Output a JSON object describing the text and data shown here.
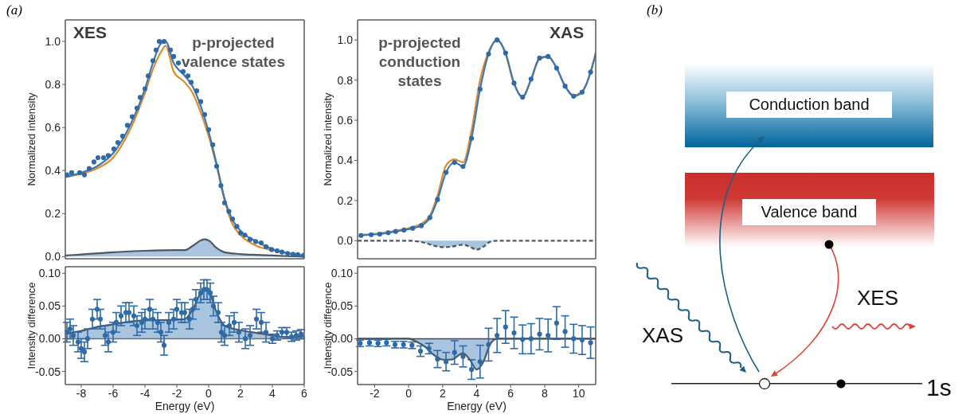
{
  "chart_data": [
    {
      "type": "line",
      "ylabel": "Normalized intensity",
      "annotations": [
        "(a)",
        "XES",
        "p-projected valence states"
      ],
      "xlim": [
        -9,
        6
      ],
      "xticks": [
        -8,
        -6,
        -4,
        -2,
        0,
        2,
        4,
        6
      ],
      "ylim": [
        -0.01,
        1.1
      ],
      "yticks": [
        {
          "value": 0,
          "label": "0.0"
        },
        {
          "value": 0.2,
          "label": "0.2"
        },
        {
          "value": 0.4,
          "label": "0.4"
        },
        {
          "value": 0.6,
          "label": "0.6"
        },
        {
          "value": 0.8,
          "label": "0.8"
        },
        {
          "value": 1,
          "label": "1.0"
        }
      ],
      "tick_labels": "y",
      "series": [
        {
          "type": "area",
          "color": "#a9c4de",
          "x": [
            -9,
            -8,
            -6,
            -4,
            -2,
            -1.5,
            -1,
            -0.5,
            -0.3,
            0,
            0.5,
            1,
            2,
            3,
            4,
            5,
            6
          ],
          "values": [
            0.005,
            0.01,
            0.02,
            0.027,
            0.03,
            0.03,
            0.05,
            0.075,
            0.08,
            0.075,
            0.04,
            0.02,
            0.012,
            0.008,
            0.005,
            0.002,
            0.0
          ]
        },
        {
          "type": "line",
          "color": "#e08a2c",
          "x": [
            -9,
            -8,
            -7,
            -6,
            -5,
            -4,
            -3.5,
            -3,
            -2.7,
            -2.2,
            -1.5,
            -1,
            -0.5,
            0,
            0.5,
            1,
            1.5,
            2,
            3,
            4,
            5,
            6
          ],
          "values": [
            0.37,
            0.385,
            0.41,
            0.46,
            0.58,
            0.76,
            0.87,
            0.95,
            0.98,
            0.86,
            0.81,
            0.76,
            0.67,
            0.56,
            0.42,
            0.26,
            0.15,
            0.1,
            0.05,
            0.03,
            0.015,
            0.005
          ]
        },
        {
          "type": "line",
          "color": "#3a78b5",
          "x": [
            -9,
            -8,
            -7,
            -6,
            -5,
            -4,
            -3.5,
            -3,
            -2.7,
            -2.2,
            -1.5,
            -1,
            -0.5,
            0,
            0.5,
            1,
            1.5,
            2,
            3,
            4,
            5,
            6
          ],
          "values": [
            0.37,
            0.39,
            0.42,
            0.48,
            0.6,
            0.78,
            0.9,
            0.99,
            1.0,
            0.9,
            0.84,
            0.79,
            0.7,
            0.58,
            0.43,
            0.27,
            0.17,
            0.12,
            0.07,
            0.035,
            0.015,
            0.005
          ]
        },
        {
          "type": "scatter",
          "marker": "circle",
          "color": "#2e6aa8",
          "x": [
            -8.9,
            -8.6,
            -8.1,
            -7.8,
            -7.5,
            -7.2,
            -6.95,
            -6.6,
            -6.3,
            -5.95,
            -5.7,
            -5.4,
            -5.1,
            -4.8,
            -4.5,
            -4.3,
            -4.0,
            -3.8,
            -3.5,
            -3.3,
            -3.1,
            -2.8,
            -2.4,
            -2.2,
            -1.9,
            -1.6,
            -1.3,
            -1.1,
            -0.75,
            -0.5,
            -0.25,
            0.0,
            0.26,
            0.5,
            0.77,
            1.0,
            1.27,
            1.5,
            1.77,
            2.0,
            2.27,
            2.6,
            2.95,
            3.3,
            3.6,
            3.95,
            4.3,
            4.6,
            4.96,
            5.3,
            5.6,
            5.97
          ],
          "values": [
            0.38,
            0.39,
            0.39,
            0.38,
            0.41,
            0.44,
            0.46,
            0.46,
            0.47,
            0.5,
            0.53,
            0.56,
            0.61,
            0.65,
            0.69,
            0.74,
            0.78,
            0.84,
            0.91,
            0.96,
            1.0,
            1.0,
            0.96,
            0.93,
            0.9,
            0.86,
            0.84,
            0.81,
            0.77,
            0.72,
            0.66,
            0.59,
            0.52,
            0.42,
            0.33,
            0.25,
            0.21,
            0.175,
            0.14,
            0.11,
            0.1,
            0.08,
            0.07,
            0.064,
            0.046,
            0.033,
            0.027,
            0.021,
            0.015,
            0.011,
            0.009,
            0.006
          ]
        }
      ]
    },
    {
      "type": "scatter",
      "xlabel": "Energy (eV)",
      "ylabel": "Intensity difference",
      "xlim": [
        -9,
        6
      ],
      "xticks": [
        -8,
        -6,
        -4,
        -2,
        0,
        2,
        4,
        6
      ],
      "ylim": [
        -0.07,
        0.11
      ],
      "yticks": [
        {
          "value": -0.05,
          "label": "-0.05"
        },
        {
          "value": 0,
          "label": "0.00"
        },
        {
          "value": 0.05,
          "label": "0.05"
        },
        {
          "value": 0.1,
          "label": "0.10"
        }
      ],
      "ref_lines": [
        {
          "axis": "y",
          "value": 0,
          "color": "#6e6e6e"
        }
      ],
      "series": [
        {
          "type": "area",
          "color": "#a9c4de",
          "x": [
            -9,
            -8,
            -7,
            -6,
            -5,
            -4,
            -2,
            -1.5,
            -1,
            -0.5,
            -0.2,
            0,
            0.5,
            1,
            2,
            3,
            4,
            5,
            6
          ],
          "values": [
            0.008,
            0.012,
            0.018,
            0.022,
            0.026,
            0.028,
            0.029,
            0.03,
            0.045,
            0.07,
            0.078,
            0.075,
            0.04,
            0.02,
            0.013,
            0.009,
            0.005,
            0.002,
            0.004
          ]
        },
        {
          "type": "scatter",
          "marker": "circle",
          "color": "#2e6aa8",
          "x": [
            -8.9,
            -8.7,
            -8.5,
            -8.2,
            -8.0,
            -7.8,
            -7.6,
            -7.3,
            -7.0,
            -6.8,
            -6.5,
            -6.3,
            -6.0,
            -5.8,
            -5.5,
            -5.2,
            -5.0,
            -4.7,
            -4.5,
            -4.2,
            -4.0,
            -3.7,
            -3.5,
            -3.2,
            -3.0,
            -2.8,
            -2.5,
            -2.2,
            -2.0,
            -1.7,
            -1.5,
            -1.2,
            -1.0,
            -0.8,
            -0.5,
            -0.3,
            -0.1,
            0.1,
            0.3,
            0.6,
            0.8,
            1.0,
            1.3,
            1.6,
            1.9,
            2.3,
            2.6,
            3.0,
            3.3,
            3.6,
            4.0,
            4.3,
            4.6,
            4.9,
            5.2,
            5.5,
            5.8
          ],
          "values": [
            0.01,
            0.015,
            0.005,
            -0.005,
            -0.015,
            -0.02,
            0.0,
            0.03,
            0.045,
            0.03,
            0.005,
            -0.005,
            0.01,
            0.025,
            0.035,
            0.04,
            0.04,
            0.035,
            0.02,
            0.025,
            0.03,
            0.045,
            0.03,
            0.025,
            0.01,
            -0.01,
            0.025,
            0.03,
            0.045,
            0.04,
            0.04,
            0.03,
            0.045,
            0.06,
            0.07,
            0.075,
            0.075,
            0.07,
            0.05,
            0.04,
            0.01,
            0.005,
            0.02,
            0.025,
            0.01,
            0.0,
            0.005,
            0.03,
            0.025,
            0.01,
            0.0,
            0.005,
            0.01,
            0.01,
            0.003,
            0.005,
            0.007
          ],
          "errors": [
            0.015,
            0.015,
            0.015,
            0.015,
            0.015,
            0.015,
            0.015,
            0.015,
            0.015,
            0.015,
            0.015,
            0.015,
            0.015,
            0.015,
            0.015,
            0.015,
            0.015,
            0.015,
            0.015,
            0.015,
            0.015,
            0.015,
            0.015,
            0.015,
            0.015,
            0.015,
            0.015,
            0.015,
            0.015,
            0.015,
            0.015,
            0.015,
            0.015,
            0.015,
            0.015,
            0.015,
            0.015,
            0.015,
            0.015,
            0.015,
            0.015,
            0.015,
            0.015,
            0.015,
            0.015,
            0.015,
            0.015,
            0.015,
            0.015,
            0.015,
            0.007,
            0.007,
            0.007,
            0.007,
            0.007,
            0.007,
            0.007
          ]
        }
      ]
    },
    {
      "type": "line",
      "ylabel": "Normalized intensity",
      "annotations": [
        "p-projected conduction states",
        "XAS"
      ],
      "xlim": [
        -3,
        11
      ],
      "xticks": [
        -2,
        0,
        2,
        4,
        6,
        8,
        10
      ],
      "ylim": [
        -0.09,
        1.1
      ],
      "yticks": [
        {
          "value": 0,
          "label": "0.0"
        },
        {
          "value": 0.2,
          "label": "0.2"
        },
        {
          "value": 0.4,
          "label": "0.4"
        },
        {
          "value": 0.6,
          "label": "0.6"
        },
        {
          "value": 0.8,
          "label": "0.8"
        },
        {
          "value": 1,
          "label": "1.0"
        }
      ],
      "tick_labels": "y",
      "series": [
        {
          "type": "area",
          "color": "#a9c4de",
          "line_style": "dashed",
          "x": [
            -3,
            0,
            0.5,
            1,
            1.5,
            2,
            2.5,
            3.2,
            3.6,
            4,
            4.4,
            4.8,
            5.2,
            11
          ],
          "values": [
            0,
            0,
            -0.003,
            -0.012,
            -0.025,
            -0.032,
            -0.03,
            -0.02,
            -0.03,
            -0.045,
            -0.03,
            -0.005,
            0,
            0
          ]
        },
        {
          "type": "line",
          "color": "#e08a2c",
          "x": [
            -2.8,
            -2.2,
            -1.7,
            -1.2,
            -0.76,
            -0.27,
            0.24,
            0.75,
            1.25,
            1.7,
            2.2,
            2.7,
            3.2,
            3.7,
            4.2,
            4.7,
            5.2,
            5.7,
            6.2,
            6.7,
            7.2,
            7.7,
            8.2,
            8.7,
            9.2,
            9.7,
            10.2,
            10.7,
            11
          ],
          "values": [
            0.03,
            0.033,
            0.037,
            0.043,
            0.05,
            0.057,
            0.068,
            0.085,
            0.125,
            0.225,
            0.375,
            0.405,
            0.39,
            0.55,
            0.8,
            0.94,
            1.0,
            0.93,
            0.78,
            0.72,
            0.8,
            0.905,
            0.915,
            0.86,
            0.77,
            0.725,
            0.745,
            0.84,
            0.94
          ]
        },
        {
          "type": "line",
          "color": "#3a78b5",
          "x": [
            -2.8,
            -2.2,
            -1.7,
            -1.2,
            -0.76,
            -0.27,
            0.24,
            0.75,
            1.25,
            1.7,
            2.2,
            2.7,
            3.2,
            3.7,
            4.2,
            4.7,
            5.2,
            5.7,
            6.2,
            6.7,
            7.2,
            7.7,
            8.2,
            8.7,
            9.2,
            9.7,
            10.2,
            10.7,
            11
          ],
          "values": [
            0.026,
            0.03,
            0.033,
            0.04,
            0.046,
            0.053,
            0.062,
            0.075,
            0.115,
            0.205,
            0.34,
            0.39,
            0.37,
            0.51,
            0.755,
            0.93,
            1.0,
            0.935,
            0.785,
            0.715,
            0.805,
            0.91,
            0.918,
            0.86,
            0.77,
            0.72,
            0.74,
            0.84,
            0.93
          ]
        },
        {
          "type": "scatter",
          "marker": "circle",
          "color": "#2e6aa8",
          "x": [
            -2.8,
            -2.2,
            -1.7,
            -1.2,
            -0.76,
            -0.27,
            0.24,
            0.75,
            1.25,
            1.7,
            2.2,
            2.7,
            3.2,
            3.7,
            4.2,
            4.7,
            5.2,
            5.7,
            6.2,
            6.7,
            7.2,
            7.7,
            8.2,
            8.7,
            9.2,
            9.7,
            10.2,
            10.7
          ],
          "values": [
            0.026,
            0.03,
            0.033,
            0.04,
            0.046,
            0.053,
            0.062,
            0.075,
            0.115,
            0.205,
            0.34,
            0.39,
            0.37,
            0.51,
            0.755,
            0.93,
            1.0,
            0.935,
            0.785,
            0.715,
            0.805,
            0.91,
            0.918,
            0.86,
            0.77,
            0.72,
            0.74,
            0.84
          ]
        }
      ]
    },
    {
      "type": "scatter",
      "xlabel": "Energy (eV)",
      "ylabel": "Intensity difference",
      "xlim": [
        -3,
        11
      ],
      "xticks": [
        -2,
        0,
        2,
        4,
        6,
        8,
        10
      ],
      "ylim": [
        -0.07,
        0.11
      ],
      "yticks": [
        {
          "value": -0.05,
          "label": "-0.05"
        },
        {
          "value": 0,
          "label": "0.00"
        },
        {
          "value": 0.05,
          "label": "0.05"
        },
        {
          "value": 0.1,
          "label": "0.10"
        }
      ],
      "ref_lines": [
        {
          "axis": "y",
          "value": 0,
          "color": "#4a4a4a"
        }
      ],
      "series": [
        {
          "type": "area",
          "color": "#a9c4de",
          "x": [
            -3,
            0,
            0.5,
            1,
            1.5,
            2,
            2.5,
            3.2,
            3.6,
            4,
            4.4,
            4.8,
            5.2,
            11
          ],
          "values": [
            0,
            0,
            -0.005,
            -0.013,
            -0.025,
            -0.032,
            -0.032,
            -0.022,
            -0.032,
            -0.047,
            -0.035,
            -0.008,
            0,
            0
          ]
        },
        {
          "type": "scatter",
          "marker": "circle",
          "color": "#2e6aa8",
          "x": [
            -2.85,
            -2.3,
            -1.8,
            -1.3,
            -0.8,
            -0.3,
            0.2,
            0.7,
            1.2,
            1.7,
            2.2,
            2.7,
            3.2,
            3.7,
            4.2,
            4.7,
            5.2,
            5.7,
            6.2,
            6.7,
            7.2,
            7.7,
            8.2,
            8.7,
            9.2,
            9.7,
            10.2,
            10.7
          ],
          "values": [
            -0.007,
            -0.006,
            -0.007,
            -0.006,
            -0.009,
            -0.009,
            -0.01,
            -0.019,
            -0.015,
            -0.031,
            -0.035,
            -0.021,
            -0.027,
            -0.047,
            -0.035,
            -0.009,
            0.005,
            0.018,
            0.009,
            -0.001,
            0.0,
            0.007,
            0.005,
            0.024,
            0.011,
            0.0,
            -0.002,
            -0.006
          ],
          "errors": [
            0.005,
            0.005,
            0.005,
            0.005,
            0.005,
            0.005,
            0.005,
            0.008,
            0.008,
            0.013,
            0.014,
            0.018,
            0.016,
            0.015,
            0.025,
            0.025,
            0.026,
            0.025,
            0.024,
            0.022,
            0.023,
            0.024,
            0.025,
            0.025,
            0.024,
            0.022,
            0.022,
            0.024
          ]
        }
      ]
    },
    {
      "type": "other",
      "annotations": [
        "(b)",
        "Conduction band",
        "Valence band",
        "XES",
        "XAS",
        "1s"
      ]
    }
  ]
}
